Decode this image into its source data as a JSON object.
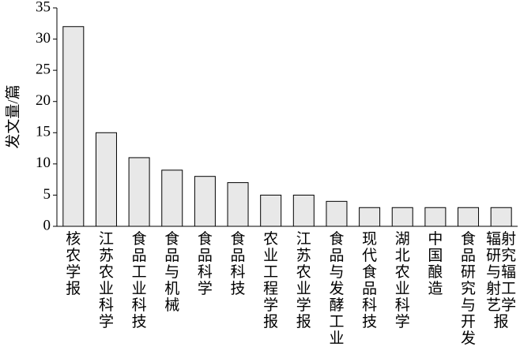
{
  "chart_data": {
    "type": "bar",
    "y_label": "发文量/篇",
    "categories": [
      "核农学报",
      "江苏农业科学",
      "食品工业科技",
      "食品与机械",
      "食品科学",
      "食品科技",
      "农业工程学报",
      "江苏农业学报",
      "食品与发酵工业",
      "现代食品科技",
      "湖北农业科学",
      "中国酿造",
      "食品研究与开发",
      "辐射研究与辐射工艺学报"
    ],
    "values": [
      32,
      15,
      11,
      9,
      8,
      7,
      5,
      5,
      4,
      3,
      3,
      3,
      3,
      3
    ],
    "color": "#e8e8e8",
    "ylim": [
      0,
      35
    ],
    "yticks": [
      0,
      5,
      10,
      15,
      20,
      25,
      30,
      35
    ],
    "grid": false
  }
}
